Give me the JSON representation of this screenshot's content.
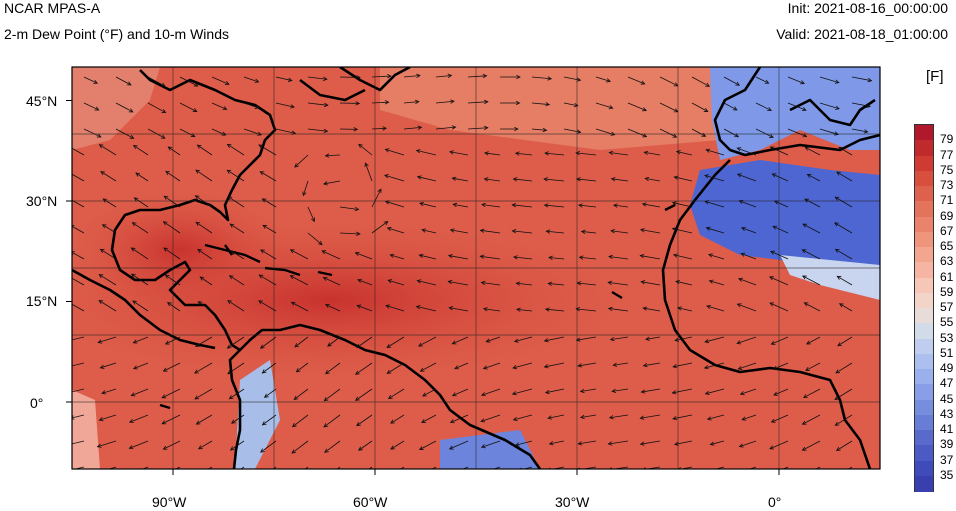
{
  "header": {
    "model": "NCAR MPAS-A",
    "field": "2-m Dew Point (°F) and 10-m Winds",
    "init": "Init: 2021-08-16_00:00:00",
    "valid": "Valid: 2021-08-18_01:00:00"
  },
  "map": {
    "lat_labels": [
      "45°N",
      "30°N",
      "15°N",
      "0°"
    ],
    "lon_labels": [
      "90°W",
      "60°W",
      "30°W",
      "0°"
    ],
    "lon_range": [
      -105,
      15
    ],
    "lat_range": [
      -10,
      50
    ],
    "grid_lons": [
      -105,
      -90,
      -75,
      -60,
      -45,
      -30,
      -15,
      0,
      15
    ],
    "grid_lats": [
      -10,
      0,
      10,
      20,
      30,
      40,
      50
    ]
  },
  "colorbar": {
    "units": "[F]",
    "labels": [
      "79",
      "77",
      "75",
      "73",
      "71",
      "69",
      "67",
      "65",
      "63",
      "61",
      "59",
      "57",
      "55",
      "53",
      "51",
      "49",
      "47",
      "45",
      "43",
      "41",
      "39",
      "37",
      "35"
    ],
    "colors": [
      "#b2182b",
      "#c12a2d",
      "#cf3b32",
      "#d84f3e",
      "#de614d",
      "#e4735c",
      "#e9846b",
      "#ee957c",
      "#f2a58f",
      "#f5b5a2",
      "#f6c6b6",
      "#f2d4c8",
      "#e7dcd8",
      "#d2dbe8",
      "#bfcdee",
      "#acbfef",
      "#9ab0ec",
      "#889fe7",
      "#778edf",
      "#677dd6",
      "#586bcc",
      "#4b5bc3",
      "#3f4bbb",
      "#3a3fb0"
    ]
  }
}
